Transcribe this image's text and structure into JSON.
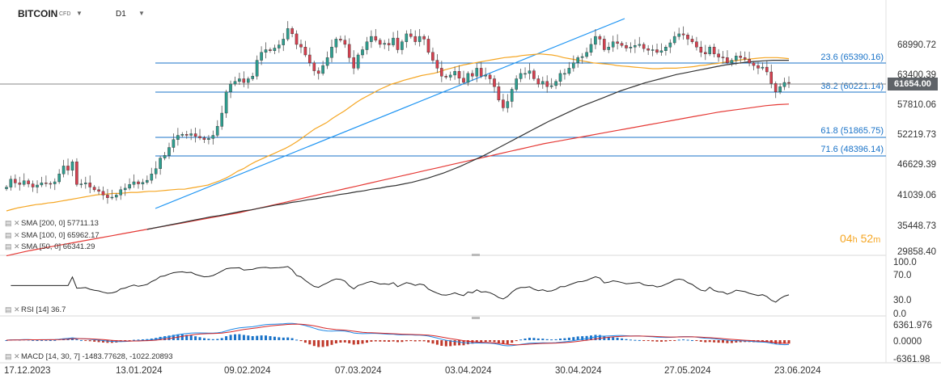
{
  "header": {
    "symbol": "BITCOIN",
    "type": "CFD",
    "timeframe": "D1"
  },
  "price_axis": [
    "68990.72",
    "63400.39",
    "57810.06",
    "52219.73",
    "46629.39",
    "41039.06",
    "35448.73",
    "29858.40"
  ],
  "current_price": "61654.00",
  "fib_levels": [
    "23.6 (65390.16)",
    "38.2 (60221.14)",
    "61.8 (51865.75)",
    "71.6 (48396.14)"
  ],
  "indicators": {
    "sma200": "SMA [200, 0] 57711.13",
    "sma100": "SMA [100, 0] 65962.17",
    "sma50": "SMA [50, 0] 66341.29",
    "rsi": "RSI [14] 36.7",
    "macd": "MACD [14, 30, 7] -1483.77628, -1022.20893"
  },
  "rsi_axis": [
    "100.0",
    "70.0",
    "30.0",
    "0.0"
  ],
  "macd_axis": [
    "6361.976",
    "0.0000",
    "-6361.98"
  ],
  "dates": [
    "17.12.2023",
    "13.01.2024",
    "09.02.2024",
    "07.03.2024",
    "03.04.2024",
    "30.04.2024",
    "27.05.2024",
    "23.06.2024"
  ],
  "timer": {
    "hours": "04",
    "h": "h",
    "minutes": "52",
    "m": "m"
  },
  "colors": {
    "up": "#2e9e8f",
    "down": "#d6404f",
    "sma50": "#f5a623",
    "sma100": "#333333",
    "sma200": "#e53935",
    "fib": "#1a73c8",
    "macd_signal": "#d62728"
  },
  "chart_data": {
    "type": "candlestick",
    "title": "",
    "x_start": "17.12.2023",
    "x_end": "23.06.2024",
    "ylim": [
      29858.4,
      72000
    ],
    "series": [
      {
        "name": "SMA [200, 0]",
        "last": 57711.13
      },
      {
        "name": "SMA [100, 0]",
        "last": 65962.17
      },
      {
        "name": "SMA [50, 0]",
        "last": 66341.29
      }
    ],
    "horizontal_levels": [
      65390.16,
      60221.14,
      51865.75,
      48396.14
    ],
    "closes": [
      42000,
      43500,
      42800,
      42500,
      43200,
      42600,
      42000,
      42400,
      42800,
      42700,
      42600,
      43000,
      44500,
      46000,
      45200,
      46800,
      42500,
      42600,
      42800,
      42000,
      41500,
      41200,
      40500,
      40000,
      40100,
      40500,
      41500,
      41800,
      42500,
      43000,
      42600,
      42900,
      43300,
      44500,
      45500,
      47500,
      48000,
      49500,
      51000,
      51800,
      52000,
      51800,
      52100,
      51600,
      51300,
      51000,
      51200,
      51800,
      53500,
      56000,
      60000,
      61500,
      62000,
      62500,
      61800,
      62500,
      63000,
      66000,
      67500,
      68000,
      67800,
      68300,
      68900,
      70000,
      72000,
      71000,
      69000,
      68500,
      67000,
      65500,
      64000,
      63500,
      65000,
      66500,
      68500,
      70000,
      69800,
      69000,
      66500,
      64500,
      67000,
      68000,
      69500,
      70500,
      69800,
      69000,
      69200,
      68900,
      70200,
      68000,
      69500,
      71000,
      70500,
      69500,
      70500,
      70000,
      67500,
      66000,
      64500,
      63000,
      62800,
      63200,
      63900,
      62600,
      61800,
      63500,
      63000,
      64500,
      63000,
      63200,
      62500,
      61000,
      58500,
      57000,
      58200,
      60500,
      62500,
      63500,
      63500,
      64000,
      62500,
      61500,
      62000,
      61000,
      61200,
      62000,
      63500,
      63500,
      64500,
      65500,
      66500,
      66700,
      67500,
      69000,
      70500,
      70000,
      68000,
      68500,
      69500,
      69200,
      68800,
      68300,
      68500,
      68800,
      69000,
      68200,
      67900,
      68000,
      67500,
      67800,
      68500,
      69300,
      70500,
      71000,
      70800,
      70000,
      69500,
      68500,
      67500,
      67200,
      68500,
      67200,
      66600,
      66500,
      65500,
      66000,
      66800,
      66500,
      66200,
      65500,
      65000,
      64500,
      64700,
      63800,
      61600,
      60000,
      61000,
      61800,
      61654
    ],
    "sma50": [
      37500,
      37800,
      38100,
      38300,
      38500,
      38700,
      38800,
      39000,
      39100,
      39300,
      39500,
      39700,
      39900,
      40100,
      40300,
      40500,
      40600,
      40700,
      40800,
      40800,
      40900,
      41000,
      41000,
      41100,
      41200,
      41200,
      41300,
      41400,
      41500,
      41600,
      41600,
      41800,
      42000,
      42200,
      42400,
      42800,
      43200,
      43700,
      44300,
      45000,
      45500,
      46200,
      46800,
      47300,
      47800,
      48300,
      48800,
      49300,
      49900,
      50600,
      51400,
      52200,
      53000,
      53600,
      54200,
      55000,
      55700,
      56400,
      57200,
      58000,
      58700,
      59300,
      59900,
      60500,
      61000,
      61500,
      61800,
      62200,
      62500,
      62800,
      63100,
      63300,
      63500,
      63800,
      64200,
      64500,
      64800,
      65100,
      65300,
      65500,
      65700,
      65900,
      66100,
      66300,
      66500,
      66600,
      66700,
      66900,
      67000,
      67100,
      67200,
      67100,
      67000,
      66800,
      66500,
      66300,
      66100,
      65900,
      65700,
      65500,
      65400,
      65300,
      65200,
      65000,
      64900,
      64800,
      64700,
      64600,
      64500,
      64400,
      64400,
      64500,
      64500,
      64500,
      64600,
      64700,
      64800,
      65000,
      65100,
      65300,
      65400,
      65600,
      65800,
      65900,
      66100,
      66200,
      66300,
      66400,
      66500,
      66500,
      66500,
      66400,
      66300
    ],
    "sma100": [
      34000,
      34300,
      34600,
      34900,
      35200,
      35500,
      35800,
      36100,
      36400,
      36600,
      36900,
      37200,
      37500,
      37700,
      38000,
      38300,
      38600,
      38800,
      39100,
      39300,
      39600,
      39800,
      40100,
      40300,
      40600,
      40800,
      41100,
      41300,
      41600,
      41800,
      42100,
      42300,
      42600,
      42900,
      43300,
      43700,
      44200,
      44700,
      45300,
      45900,
      46600,
      47300,
      48000,
      48800,
      49600,
      50400,
      51200,
      52000,
      52800,
      53600,
      54400,
      55100,
      55800,
      56500,
      57200,
      57800,
      58400,
      59000,
      59600,
      60200,
      60700,
      61200,
      61700,
      62100,
      62500,
      62900,
      63300,
      63600,
      63900,
      64200,
      64500,
      64800,
      65100,
      65300,
      65500,
      65700,
      65800,
      65900,
      66000,
      66000,
      66000
    ],
    "sma200": [
      29000,
      29500,
      30000,
      30400,
      30800,
      31200,
      31600,
      32000,
      32400,
      32800,
      33200,
      33600,
      34000,
      34400,
      34800,
      35200,
      35600,
      36000,
      36400,
      36800,
      37200,
      37700,
      38200,
      38700,
      39200,
      39700,
      40200,
      40700,
      41200,
      41700,
      42200,
      42700,
      43200,
      43700,
      44200,
      44700,
      45200,
      45700,
      46200,
      46700,
      47200,
      47700,
      48200,
      48700,
      49200,
      49700,
      50200,
      50600,
      51000,
      51400,
      51800,
      52200,
      52600,
      53000,
      53400,
      53800,
      54200,
      54600,
      55000,
      55400,
      55800,
      56200,
      56500,
      56800,
      57100,
      57400,
      57600,
      57711
    ]
  }
}
